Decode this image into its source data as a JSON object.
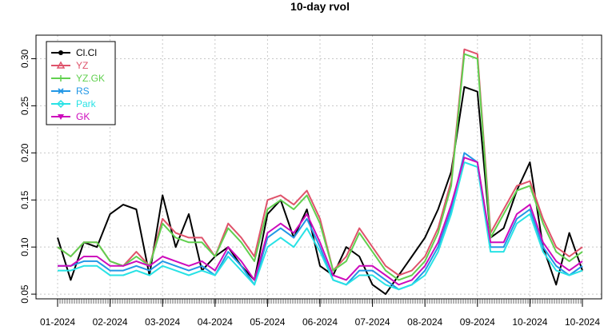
{
  "chart_data": {
    "type": "line",
    "title": "10-day rvol",
    "xlabel": "",
    "ylabel": "",
    "ylim": [
      0.045,
      0.325
    ],
    "grid": true,
    "legend_position": "top-left",
    "x_tick_labels": [
      "01-2024",
      "02-2024",
      "03-2024",
      "04-2024",
      "05-2024",
      "06-2024",
      "07-2024",
      "08-2024",
      "09-2024",
      "10-2024",
      "10-2024"
    ],
    "y_tick_labels": [
      "0.05",
      "0.10",
      "0.15",
      "0.20",
      "0.25",
      "0.30"
    ],
    "y_ticks": [
      0.05,
      0.1,
      0.15,
      0.2,
      0.25,
      0.3
    ],
    "x": [
      "01-2024",
      "01-2024",
      "01-2024",
      "01-2024",
      "02-2024",
      "02-2024",
      "02-2024",
      "02-2024",
      "03-2024",
      "03-2024",
      "03-2024",
      "03-2024",
      "04-2024",
      "04-2024",
      "04-2024",
      "04-2024",
      "05-2024",
      "05-2024",
      "05-2024",
      "05-2024",
      "06-2024",
      "06-2024",
      "06-2024",
      "06-2024",
      "07-2024",
      "07-2024",
      "07-2024",
      "07-2024",
      "08-2024",
      "08-2024",
      "08-2024",
      "08-2024",
      "09-2024",
      "09-2024",
      "09-2024",
      "09-2024",
      "10-2024",
      "10-2024",
      "10-2024",
      "10-2024",
      "10-2024"
    ],
    "series": [
      {
        "name": "Cl.Cl",
        "color": "#000000",
        "values": [
          0.11,
          0.065,
          0.105,
          0.1,
          0.135,
          0.145,
          0.14,
          0.07,
          0.155,
          0.1,
          0.135,
          0.075,
          0.09,
          0.1,
          0.08,
          0.065,
          0.135,
          0.15,
          0.11,
          0.14,
          0.08,
          0.07,
          0.1,
          0.09,
          0.06,
          0.05,
          0.07,
          0.09,
          0.11,
          0.14,
          0.18,
          0.27,
          0.265,
          0.11,
          0.12,
          0.16,
          0.19,
          0.1,
          0.06,
          0.115,
          0.075
        ]
      },
      {
        "name": "YZ",
        "color": "#DF536B",
        "values": [
          0.1,
          0.09,
          0.105,
          0.105,
          0.085,
          0.08,
          0.095,
          0.08,
          0.13,
          0.115,
          0.11,
          0.11,
          0.09,
          0.125,
          0.11,
          0.09,
          0.15,
          0.155,
          0.145,
          0.16,
          0.13,
          0.075,
          0.09,
          0.12,
          0.1,
          0.08,
          0.07,
          0.075,
          0.09,
          0.12,
          0.17,
          0.31,
          0.305,
          0.115,
          0.14,
          0.165,
          0.17,
          0.13,
          0.1,
          0.09,
          0.1
        ]
      },
      {
        "name": "YZ.GK",
        "color": "#61D04F",
        "values": [
          0.1,
          0.09,
          0.105,
          0.105,
          0.085,
          0.08,
          0.09,
          0.08,
          0.125,
          0.11,
          0.105,
          0.105,
          0.09,
          0.12,
          0.105,
          0.085,
          0.14,
          0.15,
          0.14,
          0.155,
          0.125,
          0.075,
          0.085,
          0.115,
          0.095,
          0.075,
          0.065,
          0.07,
          0.085,
          0.115,
          0.165,
          0.305,
          0.3,
          0.11,
          0.135,
          0.16,
          0.165,
          0.125,
          0.095,
          0.085,
          0.095
        ]
      },
      {
        "name": "RS",
        "color": "#2297E6",
        "values": [
          0.08,
          0.08,
          0.085,
          0.085,
          0.075,
          0.075,
          0.08,
          0.075,
          0.085,
          0.08,
          0.075,
          0.08,
          0.07,
          0.095,
          0.08,
          0.06,
          0.11,
          0.12,
          0.11,
          0.13,
          0.1,
          0.065,
          0.06,
          0.075,
          0.075,
          0.065,
          0.055,
          0.06,
          0.075,
          0.1,
          0.14,
          0.2,
          0.19,
          0.1,
          0.1,
          0.13,
          0.14,
          0.1,
          0.08,
          0.07,
          0.08
        ]
      },
      {
        "name": "Park",
        "color": "#28E2E5",
        "values": [
          0.075,
          0.075,
          0.08,
          0.08,
          0.07,
          0.07,
          0.075,
          0.07,
          0.08,
          0.075,
          0.07,
          0.075,
          0.07,
          0.09,
          0.075,
          0.06,
          0.1,
          0.11,
          0.1,
          0.12,
          0.095,
          0.065,
          0.06,
          0.07,
          0.07,
          0.06,
          0.055,
          0.06,
          0.07,
          0.095,
          0.135,
          0.19,
          0.185,
          0.095,
          0.095,
          0.125,
          0.135,
          0.095,
          0.075,
          0.07,
          0.075
        ]
      },
      {
        "name": "GK",
        "color": "#CD0BBC",
        "values": [
          0.08,
          0.08,
          0.09,
          0.09,
          0.08,
          0.08,
          0.085,
          0.08,
          0.09,
          0.085,
          0.08,
          0.085,
          0.075,
          0.1,
          0.085,
          0.065,
          0.115,
          0.125,
          0.115,
          0.135,
          0.105,
          0.07,
          0.065,
          0.08,
          0.08,
          0.07,
          0.06,
          0.065,
          0.08,
          0.105,
          0.145,
          0.195,
          0.19,
          0.105,
          0.105,
          0.135,
          0.145,
          0.105,
          0.085,
          0.075,
          0.085
        ]
      }
    ]
  }
}
